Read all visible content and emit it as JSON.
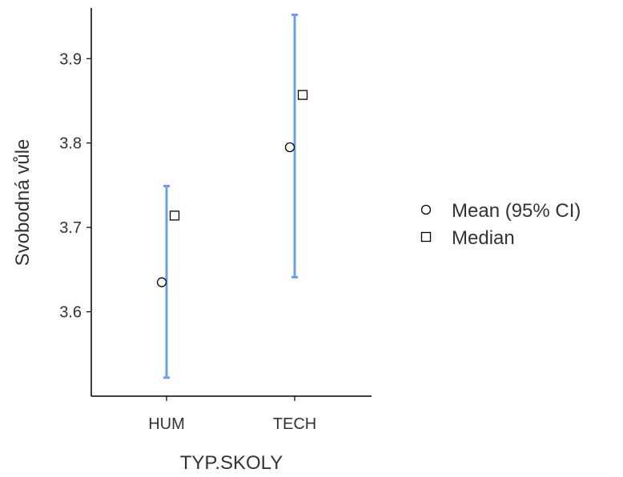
{
  "chart_data": {
    "type": "scatter",
    "xlabel": "TYP.SKOLY",
    "ylabel": "Svobodná vůle",
    "categories": [
      "HUM",
      "TECH"
    ],
    "ylim": [
      3.5,
      3.96
    ],
    "yticks": [
      3.6,
      3.7,
      3.8,
      3.9
    ],
    "ytick_labels": [
      "3.6",
      "3.7",
      "3.8",
      "3.9"
    ],
    "series": [
      {
        "name": "Mean (95% CI)",
        "marker": "circle",
        "values": [
          3.635,
          3.795
        ],
        "ci_lower": [
          3.522,
          3.641
        ],
        "ci_upper": [
          3.749,
          3.952
        ]
      },
      {
        "name": "Median",
        "marker": "square",
        "values": [
          3.714,
          3.857
        ]
      }
    ],
    "ci_color": "#6d9eeb",
    "grid": false,
    "legend_position": "right"
  }
}
